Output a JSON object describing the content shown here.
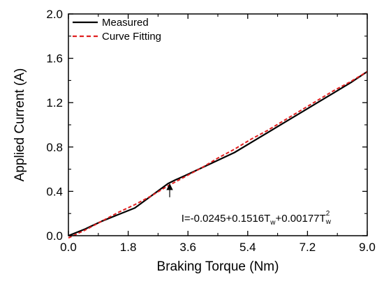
{
  "chart_data": {
    "type": "line",
    "title": "",
    "xlabel": "Braking Torque (Nm)",
    "ylabel": "Applied Current (A)",
    "xlim": [
      0,
      9
    ],
    "ylim": [
      0,
      2
    ],
    "x_ticks": [
      "0.0",
      "1.8",
      "3.6",
      "5.4",
      "7.2",
      "9.0"
    ],
    "y_ticks": [
      "0.0",
      "0.4",
      "0.8",
      "1.2",
      "1.6",
      "2.0"
    ],
    "legend_position": "top-left",
    "series": [
      {
        "name": "Measured",
        "style": "solid",
        "color": "#000000",
        "x": [
          0.0,
          0.5,
          1.0,
          1.5,
          2.0,
          2.5,
          3.0,
          3.2,
          3.5,
          4.0,
          4.5,
          5.0,
          5.5,
          6.0,
          6.5,
          7.0,
          7.5,
          8.0,
          8.5,
          9.0
        ],
        "y": [
          0.0,
          0.06,
          0.13,
          0.19,
          0.25,
          0.36,
          0.47,
          0.5,
          0.54,
          0.61,
          0.68,
          0.75,
          0.84,
          0.93,
          1.02,
          1.11,
          1.2,
          1.29,
          1.38,
          1.48
        ]
      },
      {
        "name": "Curve Fitting",
        "style": "dashed",
        "color": "#e02020",
        "x": [
          0.0,
          0.5,
          1.0,
          1.5,
          2.0,
          2.5,
          3.0,
          3.5,
          4.0,
          4.5,
          5.0,
          5.5,
          6.0,
          6.5,
          7.0,
          7.5,
          8.0,
          8.5,
          9.0
        ],
        "y": [
          -0.02,
          0.05,
          0.13,
          0.21,
          0.28,
          0.36,
          0.45,
          0.53,
          0.61,
          0.7,
          0.78,
          0.87,
          0.95,
          1.04,
          1.13,
          1.22,
          1.31,
          1.39,
          1.48
        ]
      }
    ],
    "annotation": {
      "arrow_to": [
        3.05,
        0.46
      ],
      "text_main": "I=-0.0245+0.1516T",
      "sub1": "w",
      "text_mid": "+0.00177T",
      "sub2": "w",
      "sup2": "2"
    }
  }
}
